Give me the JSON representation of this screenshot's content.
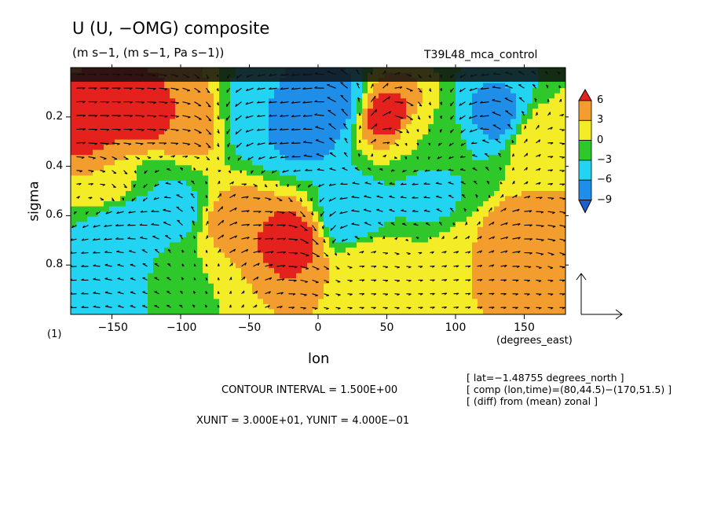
{
  "header": {
    "title": "U (U, −OMG) composite",
    "subtitle": "(m s−1, (m s−1, Pa s−1))",
    "model": "T39L48_mca_control"
  },
  "chart_data": {
    "type": "heatmap",
    "xlabel": "lon",
    "ylabel": "sigma",
    "x_unit_label": "(degrees_east)",
    "panel_label": "(1)",
    "xlim": [
      -180,
      180
    ],
    "ylim": [
      1.0,
      0.0
    ],
    "x_ticks": [
      -150,
      -100,
      -50,
      0,
      50,
      100,
      150
    ],
    "x_tick_labels": [
      "−150",
      "−100",
      "−50",
      "0",
      "50",
      "100",
      "150"
    ],
    "y_ticks": [
      0.2,
      0.4,
      0.6,
      0.8
    ],
    "y_tick_labels": [
      "0.2",
      "0.4",
      "0.6",
      "0.8"
    ],
    "colorbar": {
      "labels": [
        "6",
        "3",
        "0",
        "−3",
        "−6",
        "−9"
      ],
      "colors": [
        "#e4211c",
        "#f29d2e",
        "#f5ec28",
        "#2fc82b",
        "#22d4f2",
        "#1f8ee8",
        "#1e5fd0"
      ]
    },
    "cells": [
      {
        "lon": -165,
        "sigma": 0.25,
        "value": 7
      },
      {
        "lon": -130,
        "sigma": 0.2,
        "value": 7
      },
      {
        "lon": -100,
        "sigma": 0.22,
        "value": 6
      },
      {
        "lon": -150,
        "sigma": 0.45,
        "value": 3
      },
      {
        "lon": -120,
        "sigma": 0.5,
        "value": -3
      },
      {
        "lon": -140,
        "sigma": 0.65,
        "value": -6
      },
      {
        "lon": -110,
        "sigma": 0.6,
        "value": -6
      },
      {
        "lon": -160,
        "sigma": 0.85,
        "value": -5
      },
      {
        "lon": -120,
        "sigma": 0.85,
        "value": -3
      },
      {
        "lon": -90,
        "sigma": 0.8,
        "value": 0
      },
      {
        "lon": -60,
        "sigma": 0.65,
        "value": 6
      },
      {
        "lon": -40,
        "sigma": 0.2,
        "value": -6
      },
      {
        "lon": -20,
        "sigma": 0.7,
        "value": 7
      },
      {
        "lon": -10,
        "sigma": 0.25,
        "value": -7
      },
      {
        "lon": 10,
        "sigma": 0.15,
        "value": -8
      },
      {
        "lon": 25,
        "sigma": 0.6,
        "value": -6
      },
      {
        "lon": 50,
        "sigma": 0.2,
        "value": 7
      },
      {
        "lon": 40,
        "sigma": 0.8,
        "value": 3
      },
      {
        "lon": 75,
        "sigma": 0.3,
        "value": 0
      },
      {
        "lon": 80,
        "sigma": 0.5,
        "value": -4
      },
      {
        "lon": 100,
        "sigma": 0.35,
        "value": -3
      },
      {
        "lon": 130,
        "sigma": 0.2,
        "value": -7
      },
      {
        "lon": 160,
        "sigma": 0.3,
        "value": 3
      },
      {
        "lon": 110,
        "sigma": 0.8,
        "value": 3
      },
      {
        "lon": 150,
        "sigma": 0.7,
        "value": 6
      },
      {
        "lon": 170,
        "sigma": 0.85,
        "value": 3
      }
    ],
    "vector_reference": {
      "xunit": "3.000E+01",
      "yunit": "4.000E−01"
    }
  },
  "annotations": {
    "info_lines": [
      "[ lat=−1.48755 degrees_north ]",
      "[ comp (lon,time)=(80,44.5)−(170,51.5) ]",
      "[ (diff) from (mean) zonal ]"
    ],
    "contour_interval": "CONTOUR INTERVAL = 1.500E+00",
    "units_line": "XUNIT = 3.000E+01, YUNIT = 4.000E−01"
  }
}
